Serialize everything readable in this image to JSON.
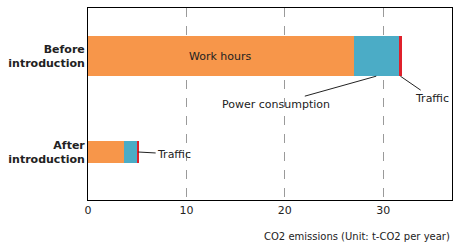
{
  "chart_data": {
    "type": "bar",
    "orientation": "horizontal",
    "stacked": true,
    "categories": [
      "Before introduction",
      "After introduction"
    ],
    "series": [
      {
        "name": "Work hours",
        "color": "#f7964a",
        "values": [
          27.0,
          3.7
        ]
      },
      {
        "name": "Power consumption",
        "color": "#4bacc6",
        "values": [
          4.6,
          1.3
        ]
      },
      {
        "name": "Traffic",
        "color": "#e0202b",
        "values": [
          0.3,
          0.2
        ]
      }
    ],
    "xlabel": "CO2 emissions (Unit: t-CO2 per year)",
    "xlim": [
      0,
      37
    ],
    "xticks": [
      0,
      10,
      20,
      30
    ],
    "grid": true,
    "annotations": [
      {
        "text": "Work hours",
        "category": "Before introduction",
        "series": "Work hours"
      },
      {
        "text": "Power consumption",
        "category": "Before introduction",
        "series": "Power consumption"
      },
      {
        "text": "Traffic",
        "category": "Before introduction",
        "series": "Traffic"
      },
      {
        "text": "Traffic",
        "category": "After introduction",
        "series": "Traffic"
      }
    ]
  }
}
